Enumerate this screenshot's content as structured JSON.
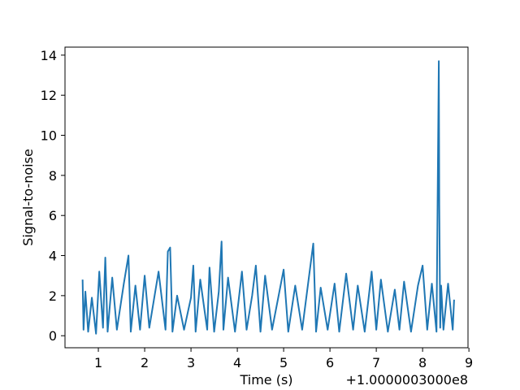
{
  "chart_data": {
    "type": "line",
    "title": "",
    "xlabel": "Time (s)",
    "ylabel": "Signal-to-noise",
    "x_offset_label": "+1.0000003000e8",
    "xlim": [
      0.28,
      8.98
    ],
    "ylim": [
      -0.6,
      14.4
    ],
    "x_ticks": [
      1,
      2,
      3,
      4,
      5,
      6,
      7,
      8,
      9
    ],
    "y_ticks": [
      0,
      2,
      4,
      6,
      8,
      10,
      12,
      14
    ],
    "grid": false,
    "legend": "none",
    "line_color": "#1f77b4",
    "series": [
      {
        "x": [
          0.66,
          0.68,
          0.72,
          0.78,
          0.86,
          0.95,
          1.0,
          1.02,
          1.1,
          1.15,
          1.2,
          1.3,
          1.4,
          1.55,
          1.65,
          1.7,
          1.8,
          1.9,
          2.0,
          2.1,
          2.2,
          2.3,
          2.45,
          2.5,
          2.55,
          2.6,
          2.7,
          2.85,
          3.0,
          3.05,
          3.1,
          3.2,
          3.35,
          3.4,
          3.5,
          3.6,
          3.66,
          3.7,
          3.8,
          3.95,
          4.1,
          4.2,
          4.32,
          4.4,
          4.5,
          4.6,
          4.75,
          4.9,
          5.0,
          5.1,
          5.25,
          5.4,
          5.55,
          5.64,
          5.7,
          5.8,
          5.95,
          6.1,
          6.2,
          6.35,
          6.5,
          6.6,
          6.75,
          6.9,
          7.0,
          7.1,
          7.25,
          7.4,
          7.5,
          7.6,
          7.75,
          7.9,
          8.0,
          8.1,
          8.2,
          8.3,
          8.35,
          8.36,
          8.38,
          8.4,
          8.45,
          8.55,
          8.65,
          8.68
        ],
        "values": [
          2.8,
          0.3,
          2.2,
          0.2,
          1.9,
          0.1,
          2.3,
          3.2,
          0.4,
          3.9,
          0.2,
          2.9,
          0.3,
          2.6,
          4.0,
          0.2,
          2.5,
          0.3,
          3.0,
          0.4,
          1.8,
          3.2,
          0.3,
          4.2,
          4.4,
          0.2,
          2.0,
          0.3,
          1.9,
          3.5,
          0.2,
          2.8,
          0.3,
          3.4,
          0.2,
          2.2,
          4.7,
          0.3,
          2.9,
          0.2,
          3.2,
          0.3,
          2.0,
          3.5,
          0.2,
          3.0,
          0.3,
          2.1,
          3.3,
          0.2,
          2.5,
          0.3,
          3.0,
          4.6,
          0.2,
          2.4,
          0.3,
          2.6,
          0.2,
          3.1,
          0.3,
          2.5,
          0.2,
          3.2,
          0.3,
          2.8,
          0.2,
          2.3,
          0.3,
          2.7,
          0.2,
          2.5,
          3.5,
          0.3,
          2.6,
          0.2,
          13.7,
          6.5,
          0.4,
          2.5,
          0.3,
          2.6,
          0.3,
          1.8
        ]
      }
    ]
  }
}
